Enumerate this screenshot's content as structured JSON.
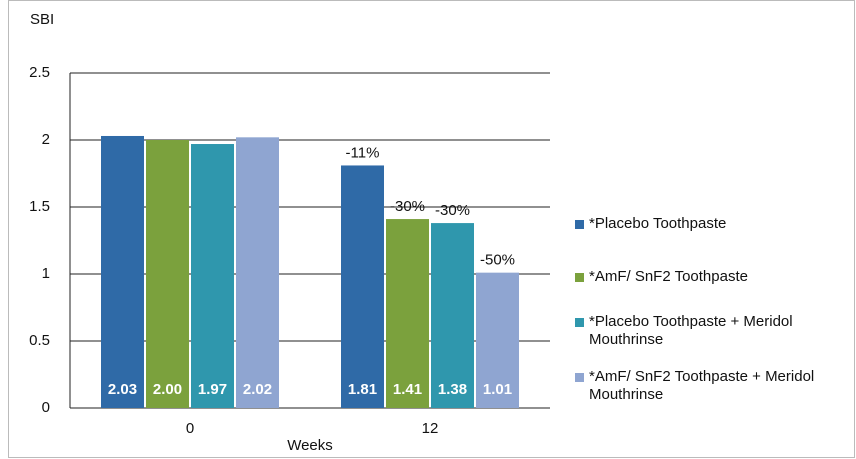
{
  "chart_data": {
    "type": "bar",
    "y_label": "SBI",
    "x_label": "Weeks",
    "categories": [
      "0",
      "12"
    ],
    "series": [
      {
        "name": "*Placebo Toothpaste",
        "color": "#2f6aa7",
        "values": [
          2.03,
          1.81
        ],
        "value_labels": [
          "2.03",
          "1.81"
        ]
      },
      {
        "name": "*AmF/ SnF2 Toothpaste",
        "color": "#7ba13d",
        "values": [
          2.0,
          1.41
        ],
        "value_labels": [
          "2.00",
          "1.41"
        ]
      },
      {
        "name": "*Placebo Toothpaste + Meridol Mouthrinse",
        "color": "#2f97ad",
        "values": [
          1.97,
          1.38
        ],
        "value_labels": [
          "1.97",
          "1.38"
        ]
      },
      {
        "name": "*AmF/ SnF2 Toothpaste + Meridol Mouthrinse",
        "color": "#8fa5d1",
        "values": [
          2.02,
          1.01
        ],
        "value_labels": [
          "2.02",
          "1.01"
        ]
      }
    ],
    "annotations": [
      "-11%",
      "-30%",
      "-30%",
      "-50%"
    ],
    "ylim": [
      0,
      2.5
    ],
    "yticks": [
      0,
      0.5,
      1,
      1.5,
      2,
      2.5
    ],
    "grid": true,
    "legend": "right"
  }
}
